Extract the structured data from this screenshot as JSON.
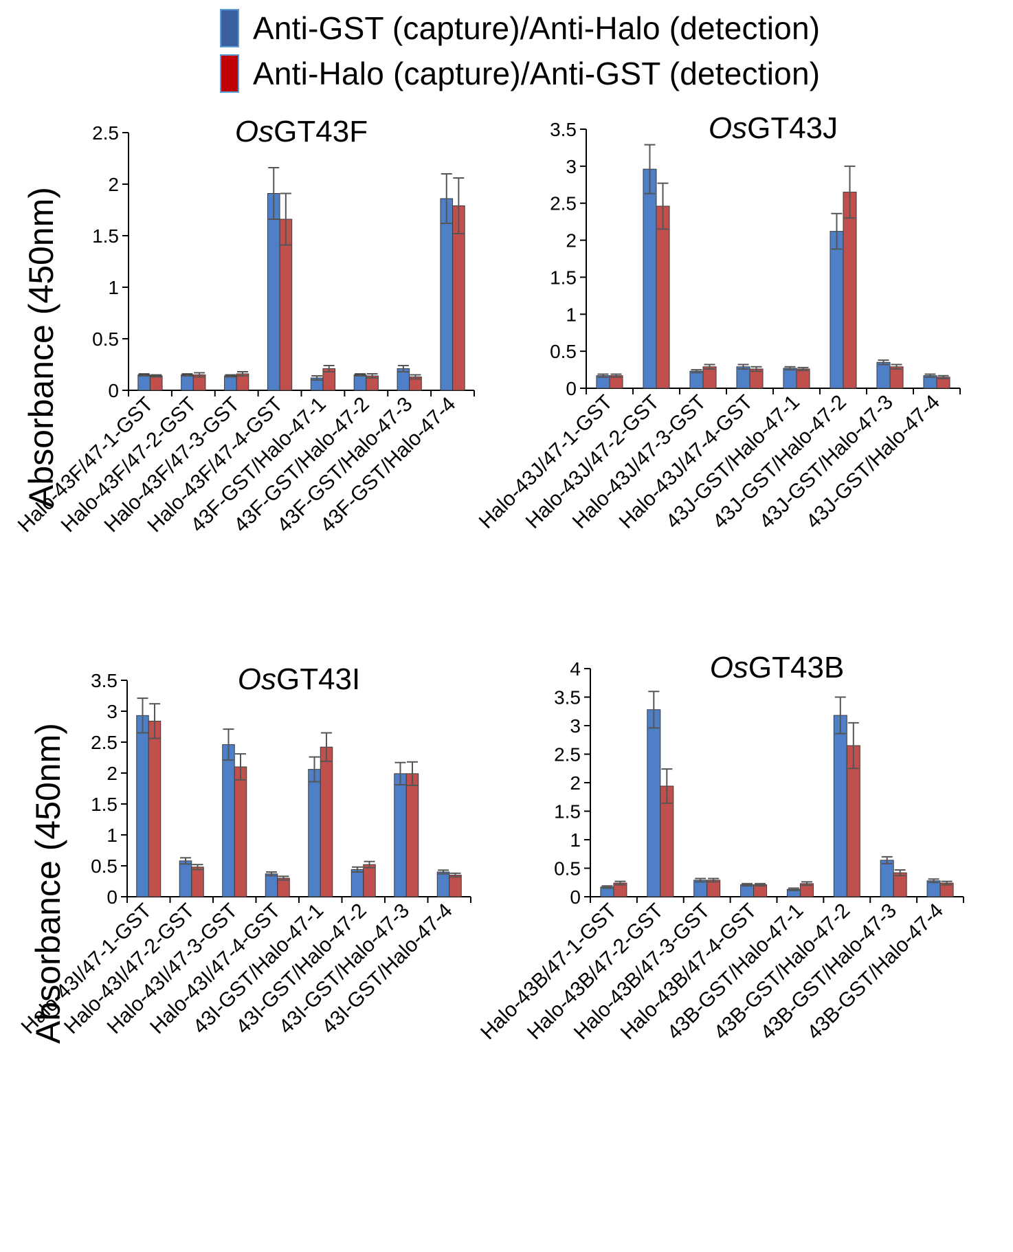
{
  "colors": {
    "series_a": "#4f7fc7",
    "series_b": "#c0504d",
    "legend_a": "#3a5f9e",
    "legend_b": "#c00000",
    "error_bar": "#555555",
    "axis": "#000000"
  },
  "legend": [
    {
      "label": "Anti-GST (capture)/Anti-Halo (detection)"
    },
    {
      "label": "Anti-Halo (capture)/Anti-GST (detection)"
    }
  ],
  "chart_data": [
    {
      "type": "bar",
      "title_italic": "Os",
      "title_rest": "GT43F",
      "ylabel": "Absorbance (450nm)",
      "ylim": [
        0,
        2.5
      ],
      "yticks": [
        "0",
        "0.5",
        "1",
        "1.5",
        "2",
        "2.5"
      ],
      "categories": [
        "Halo-43F/47-1-GST",
        "Halo-43F/47-2-GST",
        "Halo-43F/47-3-GST",
        "Halo-43F/47-4-GST",
        "43F-GST/Halo-47-1",
        "43F-GST/Halo-47-2",
        "43F-GST/Halo-47-3",
        "43F-GST/Halo-47-4"
      ],
      "series": [
        {
          "values": [
            0.15,
            0.15,
            0.14,
            1.91,
            0.12,
            0.15,
            0.21,
            1.86
          ],
          "errors": [
            0.01,
            0.01,
            0.01,
            0.25,
            0.02,
            0.01,
            0.03,
            0.24
          ]
        },
        {
          "values": [
            0.14,
            0.15,
            0.16,
            1.66,
            0.21,
            0.14,
            0.13,
            1.79
          ],
          "errors": [
            0.01,
            0.02,
            0.02,
            0.25,
            0.03,
            0.02,
            0.02,
            0.27
          ]
        }
      ]
    },
    {
      "type": "bar",
      "title_italic": "Os",
      "title_rest": "GT43J",
      "ylabel": "",
      "ylim": [
        0,
        3.5
      ],
      "yticks": [
        "0",
        "0.5",
        "1",
        "1.5",
        "2",
        "2.5",
        "3",
        "3.5"
      ],
      "categories": [
        "Halo-43J/47-1-GST",
        "Halo-43J/47-2-GST",
        "Halo-43J/47-3-GST",
        "Halo-43J/47-4-GST",
        "43J-GST/Halo-47-1",
        "43J-GST/Halo-47-2",
        "43J-GST/Halo-47-3",
        "43J-GST/Halo-47-4"
      ],
      "series": [
        {
          "values": [
            0.17,
            2.96,
            0.23,
            0.29,
            0.27,
            2.12,
            0.35,
            0.17
          ],
          "errors": [
            0.02,
            0.33,
            0.02,
            0.03,
            0.02,
            0.24,
            0.03,
            0.02
          ]
        },
        {
          "values": [
            0.17,
            2.46,
            0.29,
            0.26,
            0.26,
            2.65,
            0.29,
            0.15
          ],
          "errors": [
            0.02,
            0.31,
            0.03,
            0.03,
            0.02,
            0.35,
            0.03,
            0.02
          ]
        }
      ]
    },
    {
      "type": "bar",
      "title_italic": "Os",
      "title_rest": "GT43I",
      "ylabel": "Absorbance (450nm)",
      "ylim": [
        0,
        3.5
      ],
      "yticks": [
        "0",
        "0.5",
        "1",
        "1.5",
        "2",
        "2.5",
        "3",
        "3.5"
      ],
      "categories": [
        "Halo-43I/47-1-GST",
        "Halo-43I/47-2-GST",
        "Halo-43I/47-3-GST",
        "Halo-43I/47-4-GST",
        "43I-GST/Halo-47-1",
        "43I-GST/Halo-47-2",
        "43I-GST/Halo-47-3",
        "43I-GST/Halo-47-4"
      ],
      "series": [
        {
          "values": [
            2.93,
            0.58,
            2.46,
            0.37,
            2.06,
            0.44,
            1.99,
            0.4
          ],
          "errors": [
            0.28,
            0.05,
            0.25,
            0.03,
            0.2,
            0.04,
            0.18,
            0.03
          ]
        },
        {
          "values": [
            2.84,
            0.48,
            2.1,
            0.3,
            2.42,
            0.52,
            1.99,
            0.35
          ],
          "errors": [
            0.28,
            0.04,
            0.21,
            0.03,
            0.23,
            0.05,
            0.19,
            0.03
          ]
        }
      ]
    },
    {
      "type": "bar",
      "title_italic": "Os",
      "title_rest": "GT43B",
      "ylabel": "",
      "ylim": [
        0,
        4
      ],
      "yticks": [
        "0",
        "0.5",
        "1",
        "1.5",
        "2",
        "2.5",
        "3",
        "3.5",
        "4"
      ],
      "categories": [
        "Halo-43B/47-1-GST",
        "Halo-43B/47-2-GST",
        "Halo-43B/47-3-GST",
        "Halo-43B/47-4-GST",
        "43B-GST/Halo-47-1",
        "43B-GST/Halo-47-2",
        "43B-GST/Halo-47-3",
        "43B-GST/Halo-47-4"
      ],
      "series": [
        {
          "values": [
            0.17,
            3.28,
            0.29,
            0.21,
            0.13,
            3.18,
            0.64,
            0.28
          ],
          "errors": [
            0.02,
            0.32,
            0.03,
            0.02,
            0.02,
            0.32,
            0.06,
            0.03
          ]
        },
        {
          "values": [
            0.24,
            1.94,
            0.29,
            0.21,
            0.23,
            2.65,
            0.42,
            0.24
          ],
          "errors": [
            0.03,
            0.3,
            0.03,
            0.02,
            0.03,
            0.4,
            0.05,
            0.03
          ]
        }
      ]
    }
  ]
}
